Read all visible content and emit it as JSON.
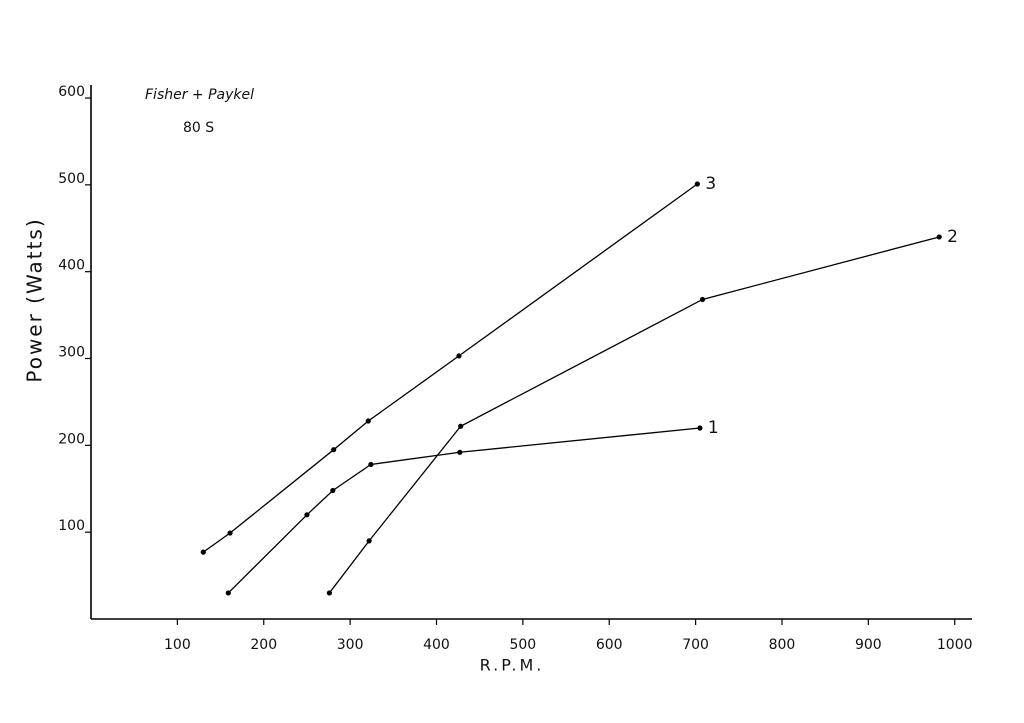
{
  "chart_data": {
    "type": "line",
    "title": "Fisher + Paykel",
    "subtitle": "80 S",
    "x_label": "R.P.M.",
    "y_label": "Power (Watts)",
    "series": [
      {
        "name": "1",
        "color": "#000000",
        "x": [
          159,
          250,
          280,
          324,
          427,
          705
        ],
        "values": [
          30,
          120,
          148,
          178,
          192,
          220
        ]
      },
      {
        "name": "2",
        "color": "#000000",
        "x": [
          276,
          322,
          428,
          708,
          982
        ],
        "values": [
          30,
          90,
          222,
          368,
          440
        ]
      },
      {
        "name": "3",
        "color": "#000000",
        "x": [
          130,
          161,
          281,
          321,
          426,
          702
        ],
        "values": [
          77,
          99,
          195,
          228,
          303,
          501
        ]
      }
    ],
    "xlim": [
      0,
      1020
    ],
    "ylim": [
      0,
      615
    ],
    "xticks": [
      100,
      200,
      300,
      400,
      500,
      600,
      700,
      800,
      900,
      1000
    ],
    "yticks": [
      100,
      200,
      300,
      400,
      500,
      600
    ]
  }
}
